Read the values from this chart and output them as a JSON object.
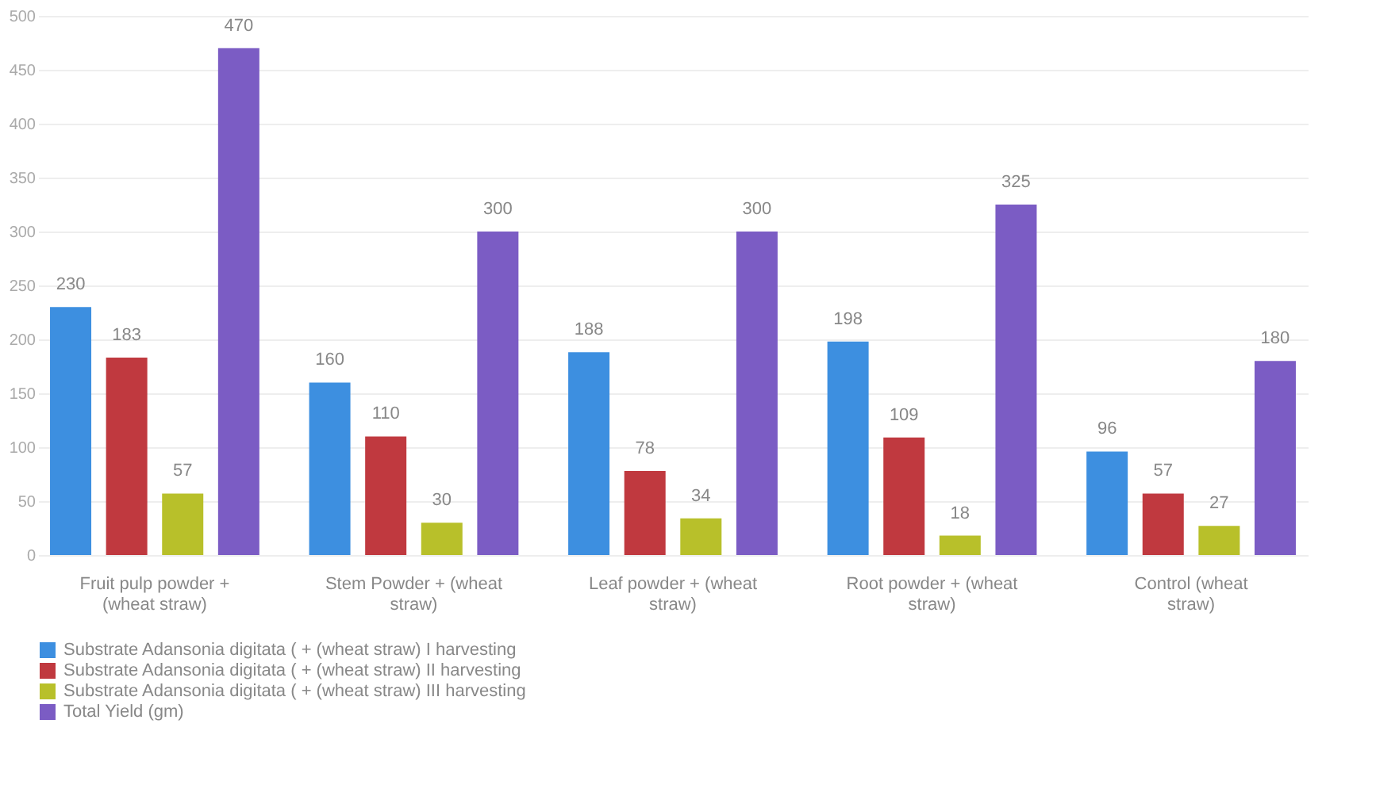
{
  "chart_data": {
    "type": "bar",
    "categories": [
      "Fruit pulp powder + (wheat straw)",
      "Stem Powder + (wheat straw)",
      "Leaf powder + (wheat straw)",
      "Root powder + (wheat straw)",
      "Control (wheat straw)"
    ],
    "series": [
      {
        "name": "Substrate Adansonia digitata ( + (wheat straw) I harvesting",
        "color": "#3d8fe0",
        "values": [
          230,
          160,
          188,
          198,
          96
        ]
      },
      {
        "name": "Substrate Adansonia digitata ( + (wheat straw) II harvesting",
        "color": "#c0393f",
        "values": [
          183,
          110,
          78,
          109,
          57
        ]
      },
      {
        "name": "Substrate Adansonia digitata ( + (wheat straw) III harvesting",
        "color": "#b8c02a",
        "values": [
          57,
          30,
          34,
          18,
          27
        ]
      },
      {
        "name": "Total Yield (gm)",
        "color": "#7b5cc4",
        "values": [
          470,
          300,
          300,
          325,
          180
        ]
      }
    ],
    "ylim": [
      0,
      500
    ],
    "yticks": [
      0,
      50,
      100,
      150,
      200,
      250,
      300,
      350,
      400,
      450,
      500
    ],
    "grid": "y",
    "legend": "bottom",
    "data_labels": true
  }
}
